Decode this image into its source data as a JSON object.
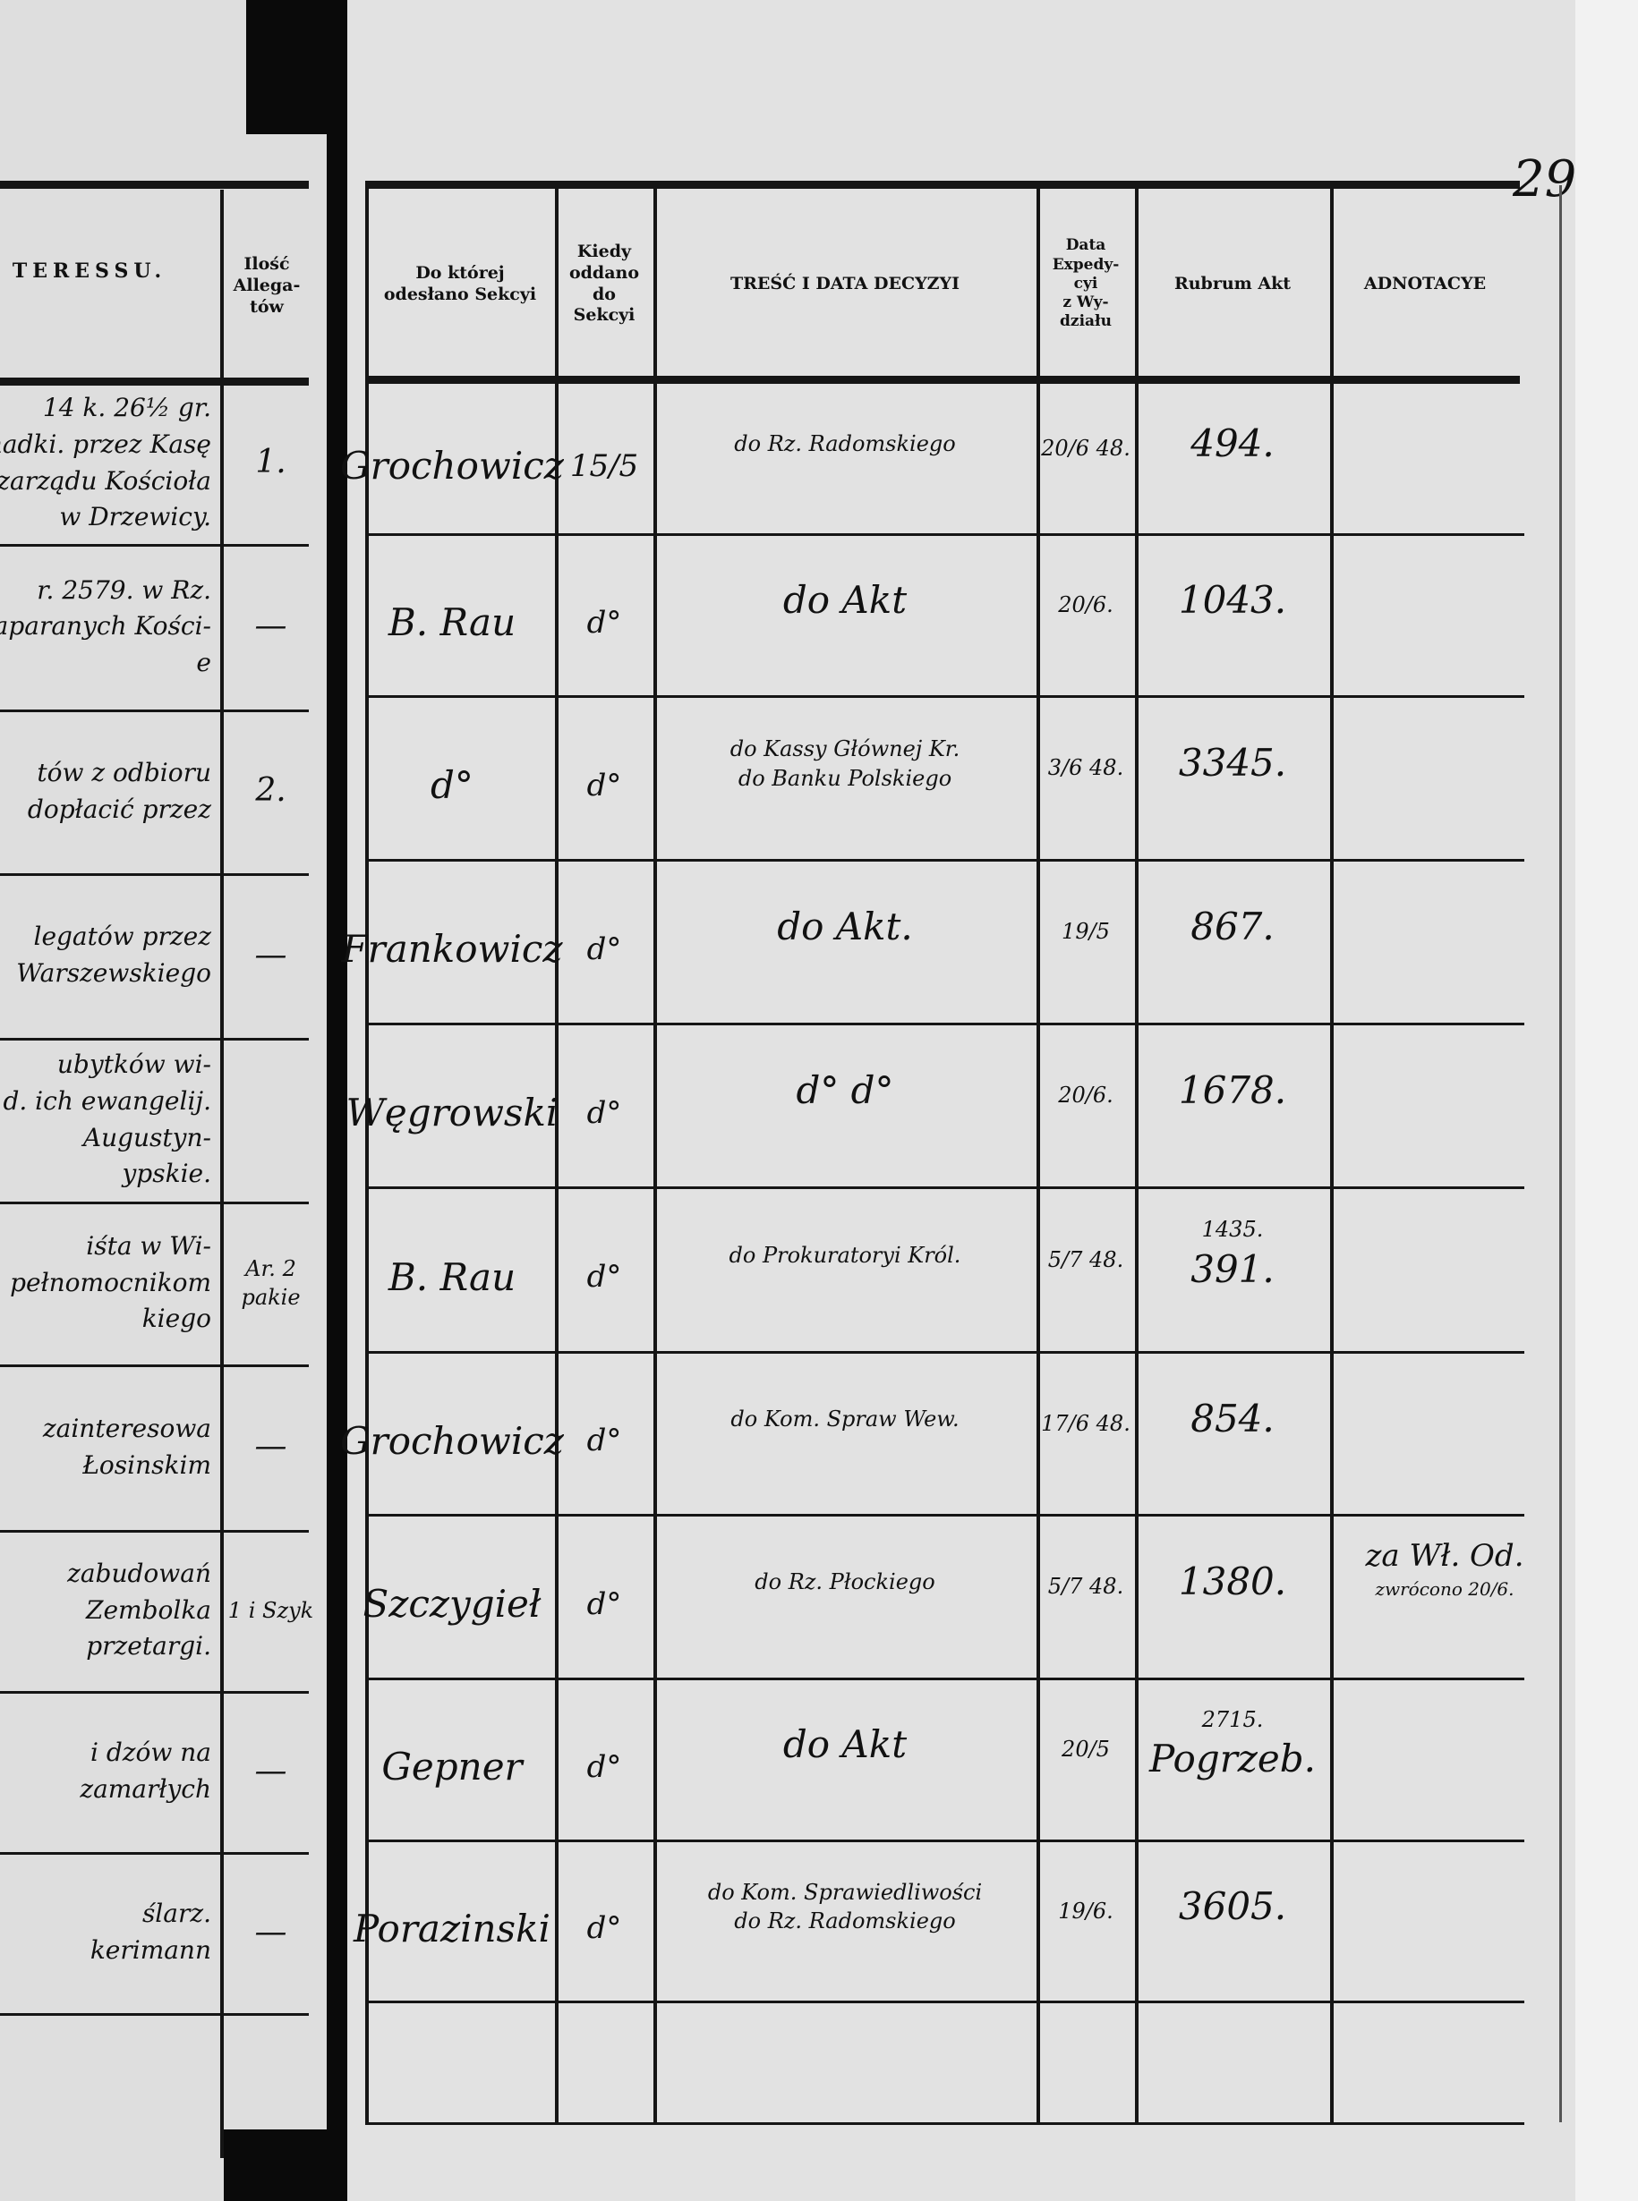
{
  "page_number": "29",
  "left_page": {
    "header_fragment": "TERESSU.",
    "count_header": [
      "Ilość",
      "Allega-",
      "tów"
    ],
    "rows": [
      {
        "lines": [
          "14 k. 26½ gr.",
          "nadki. przez Kasę",
          "zarządu Kościoła",
          "w Drzewicy."
        ],
        "count": "1."
      },
      {
        "lines": [
          "r. 2579. w Rz.",
          "zaparanych Kości-",
          "e"
        ],
        "count": "—"
      },
      {
        "lines": [
          "tów z odbioru",
          "dopłacić przez"
        ],
        "count": "2."
      },
      {
        "lines": [
          "legatów przez",
          "Warszewskiego"
        ],
        "count": "—"
      },
      {
        "lines": [
          "ubytków wi-",
          "d. ich ewangelij.",
          "Augustyn-",
          "ypskie."
        ],
        "count": ""
      },
      {
        "lines": [
          "iśta w Wi-",
          "pełnomocnikom",
          "kiego"
        ],
        "count": "Ar. 2 pakie"
      },
      {
        "lines": [
          "zainteresowa",
          "Łosinskim"
        ],
        "count": "—"
      },
      {
        "lines": [
          "zabudowań",
          "Zembolka",
          "przetargi."
        ],
        "count": "1 i Szyk"
      },
      {
        "lines": [
          "i dzów na",
          "zamarłych"
        ],
        "count": "—"
      },
      {
        "lines": [
          "ślarz.",
          "kerimann"
        ],
        "count": "—"
      }
    ]
  },
  "right_page": {
    "headers": {
      "sekcja": [
        "Do której",
        "odesłano Sekcyi"
      ],
      "kiedy": [
        "Kiedy",
        "oddano",
        "do",
        "Sekcyi"
      ],
      "tresc": [
        "TREŚĆ I DATA DECYZYI"
      ],
      "data": [
        "Data",
        "Expedy-",
        "cyi",
        "z Wy-",
        "działu"
      ],
      "rubrum": [
        "Rubrum Akt"
      ],
      "adnotacye": [
        "ADNOTACYE"
      ]
    },
    "rows": [
      {
        "sekcja": "Grochowicz",
        "kiedy": "15/5",
        "tresc": [
          "do Rz. Radomskiego"
        ],
        "data": "20/6 48.",
        "rubrum": [
          "494."
        ],
        "adnotacye": []
      },
      {
        "sekcja": "B. Rau",
        "kiedy": "d°",
        "tresc": [
          "do Akt"
        ],
        "data": "20/6.",
        "rubrum": [
          "1043."
        ],
        "adnotacye": []
      },
      {
        "sekcja": "d°",
        "kiedy": "d°",
        "tresc": [
          "do Kassy Głównej Kr.",
          "do Banku Polskiego"
        ],
        "data": "3/6 48.",
        "rubrum": [
          "3345."
        ],
        "adnotacye": []
      },
      {
        "sekcja": "Frankowicz",
        "kiedy": "d°",
        "tresc": [
          "do Akt."
        ],
        "data": "19/5",
        "rubrum": [
          "867."
        ],
        "adnotacye": []
      },
      {
        "sekcja": "Węgrowski",
        "kiedy": "d°",
        "tresc": [
          "d° d°"
        ],
        "data": "20/6.",
        "rubrum": [
          "1678."
        ],
        "adnotacye": []
      },
      {
        "sekcja": "B. Rau",
        "kiedy": "d°",
        "tresc": [
          "do Prokuratoryi Król."
        ],
        "data": "5/7 48.",
        "rubrum": [
          "1435.",
          "391."
        ],
        "adnotacye": []
      },
      {
        "sekcja": "Grochowicz",
        "kiedy": "d°",
        "tresc": [
          "do Kom. Spraw Wew."
        ],
        "data": "17/6 48.",
        "rubrum": [
          "854."
        ],
        "adnotacye": []
      },
      {
        "sekcja": "Szczygieł",
        "kiedy": "d°",
        "tresc": [
          "do Rz. Płockiego"
        ],
        "data": "5/7 48.",
        "rubrum": [
          "1380."
        ],
        "adnotacye": [
          "za Wł. Od.",
          "zwrócono 20/6."
        ]
      },
      {
        "sekcja": "Gepner",
        "kiedy": "d°",
        "tresc": [
          "do Akt"
        ],
        "data": "20/5",
        "rubrum": [
          "2715.",
          "Pogrzeb."
        ],
        "adnotacye": []
      },
      {
        "sekcja": "Porazinski",
        "kiedy": "d°",
        "tresc": [
          "do Kom. Sprawiedliwości",
          "do Rz. Radomskiego"
        ],
        "data": "19/6.",
        "rubrum": [
          "3605."
        ],
        "adnotacye": []
      }
    ]
  }
}
